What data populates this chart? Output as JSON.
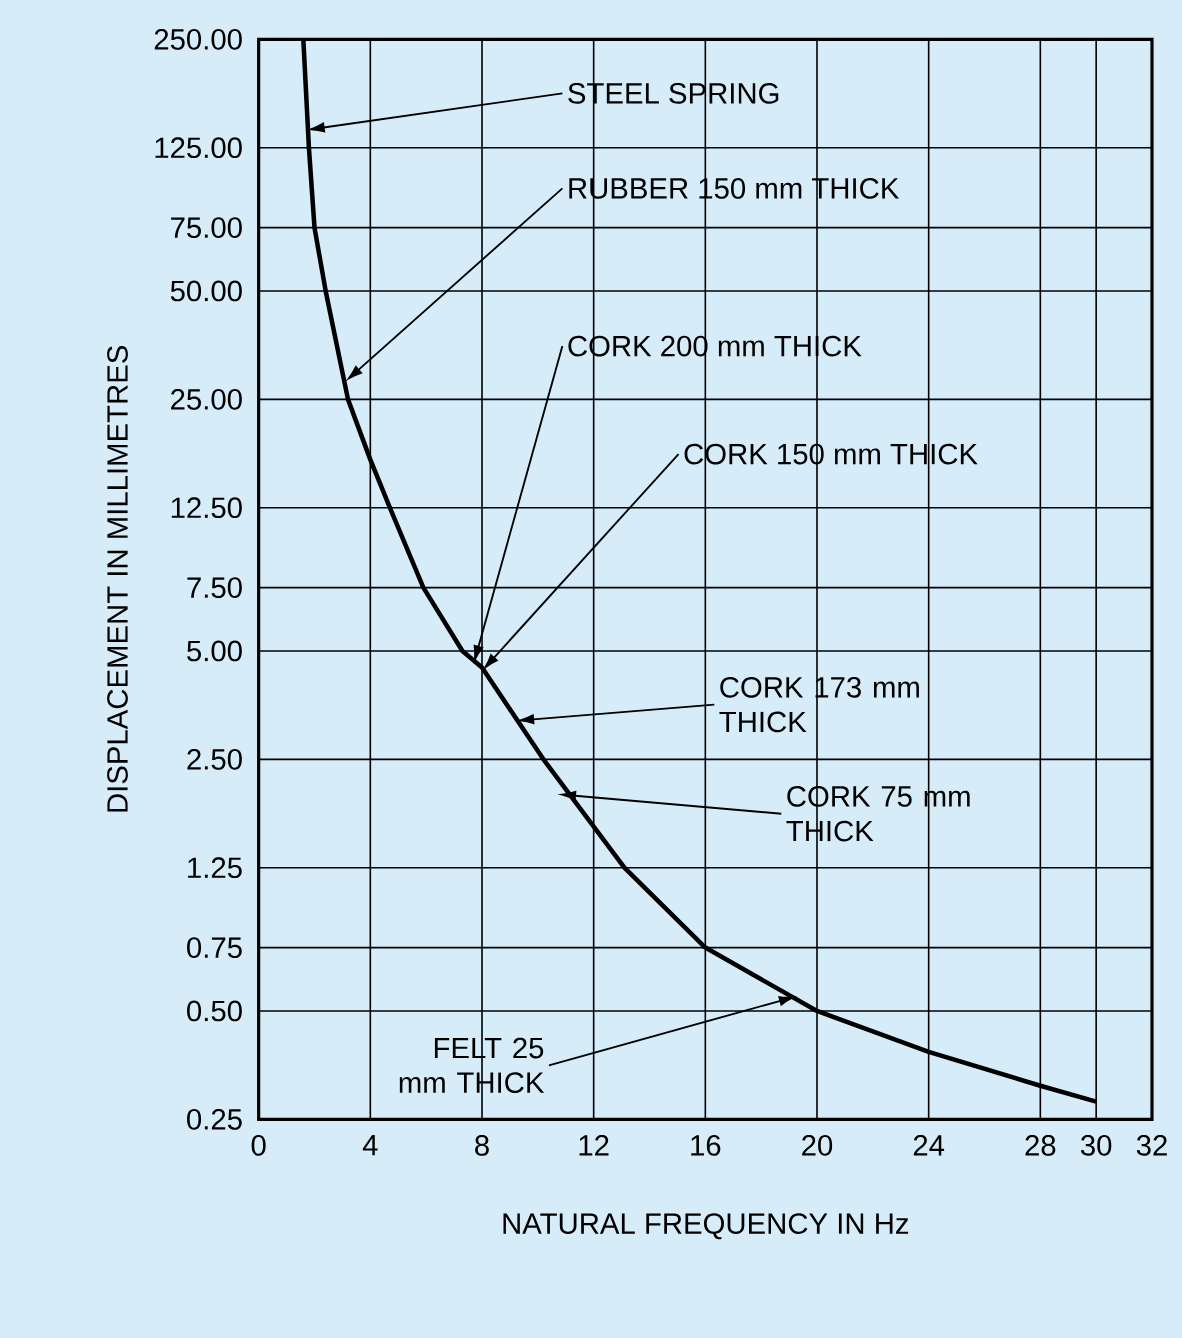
{
  "chart_data": {
    "type": "line",
    "xlabel": "NATURAL FREQUENCY IN Hz",
    "ylabel": "DISPLACEMENT IN MILLIMETRES",
    "x": [
      1.6,
      1.8,
      2.0,
      2.4,
      3.2,
      4.0,
      4.7,
      5.9,
      7.3,
      8.0,
      10.2,
      13.1,
      16.0,
      20.0,
      24,
      28,
      30
    ],
    "values": [
      250,
      125,
      75,
      50,
      25,
      17,
      12.5,
      7.5,
      5.0,
      4.5,
      2.5,
      1.25,
      0.75,
      0.5,
      0.385,
      0.31,
      0.28
    ],
    "color": "#000000",
    "log": "y",
    "grid": true,
    "marker": "none",
    "line_style": "solid",
    "xlim": [
      0,
      32
    ],
    "ylim": [
      0.25,
      250
    ],
    "xticks": [
      0,
      4,
      8,
      12,
      16,
      20,
      24,
      28,
      30,
      32
    ],
    "yticks": [
      {
        "value": 0.25,
        "label": "0.25"
      },
      {
        "value": 0.5,
        "label": "0.50"
      },
      {
        "value": 0.75,
        "label": "0.75"
      },
      {
        "value": 1.25,
        "label": "1.25"
      },
      {
        "value": 2.5,
        "label": "2.50"
      },
      {
        "value": 5,
        "label": "5.00"
      },
      {
        "value": 7.5,
        "label": "7.50"
      },
      {
        "value": 12.5,
        "label": "12.50"
      },
      {
        "value": 25,
        "label": "25.00"
      },
      {
        "value": 50,
        "label": "50.00"
      },
      {
        "value": 75,
        "label": "75.00"
      },
      {
        "value": 125,
        "label": "125.00"
      },
      {
        "value": 250,
        "label": "250.00"
      }
    ],
    "annotations": [
      {
        "text": "STEEL SPRING",
        "x": 1.7,
        "y": 140
      },
      {
        "text": "RUBBER 150 mm THICK",
        "x": 3.1,
        "y": 28
      },
      {
        "text": "CORK 200 mm THICK",
        "x": 7.7,
        "y": 4.6
      },
      {
        "text": "CORK 150 mm THICK",
        "x": 8.0,
        "y": 4.4
      },
      {
        "text": "CORK 173 mm THICK",
        "x": 9.2,
        "y": 3.2
      },
      {
        "text": "CORK 75 mm THICK",
        "x": 10.7,
        "y": 2.0
      },
      {
        "text": "FELT 25 mm THICK",
        "x": 19.3,
        "y": 0.55
      }
    ]
  }
}
